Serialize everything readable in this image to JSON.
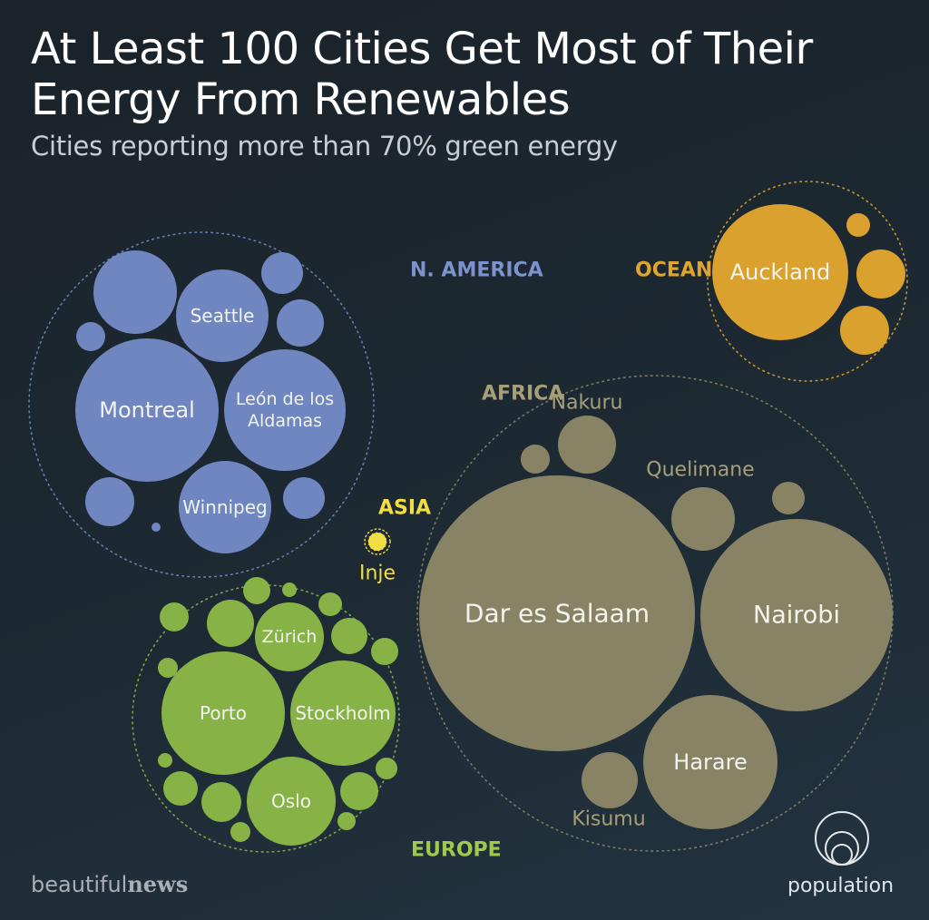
{
  "header": {
    "title_line1": "At Least 100 Cities Get Most of Their",
    "title_line2": "Energy From Renewables",
    "subtitle": "Cities reporting more than 70% green energy"
  },
  "footer": {
    "brand_left_a": "beautiful",
    "brand_left_b": "news",
    "brand_right": "population"
  },
  "colors": {
    "n_america": "#6f86c0",
    "n_america_label": "#7d93d0",
    "oceania": "#dba12e",
    "oceania_label": "#e0a531",
    "africa": "#898366",
    "africa_label": "#a69f78",
    "asia": "#f1de45",
    "europe": "#86b246",
    "europe_label": "#a0c94e",
    "city_label": "#f3f4ee"
  },
  "chart_data": {
    "type": "packed-bubble",
    "groups": [
      {
        "region": "N. AMERICA",
        "color_key": "n_america",
        "labeled_cities": [
          "Montreal",
          "León de los Aldamas",
          "Seattle",
          "Winnipeg"
        ],
        "unlabeled_city_count": 8
      },
      {
        "region": "OCEANIA",
        "color_key": "oceania",
        "labeled_cities": [
          "Auckland"
        ],
        "unlabeled_city_count": 3
      },
      {
        "region": "AFRICA",
        "color_key": "africa",
        "labeled_cities": [
          "Dar es Salaam",
          "Nairobi",
          "Harare",
          "Nakuru",
          "Quelimane",
          "Kisumu"
        ],
        "unlabeled_city_count": 2
      },
      {
        "region": "ASIA",
        "color_key": "asia",
        "labeled_cities": [
          "Inje"
        ],
        "unlabeled_city_count": 0
      },
      {
        "region": "EUROPE",
        "color_key": "europe",
        "labeled_cities": [
          "Porto",
          "Stockholm",
          "Oslo",
          "Zürich"
        ],
        "unlabeled_city_count": 25
      }
    ]
  }
}
